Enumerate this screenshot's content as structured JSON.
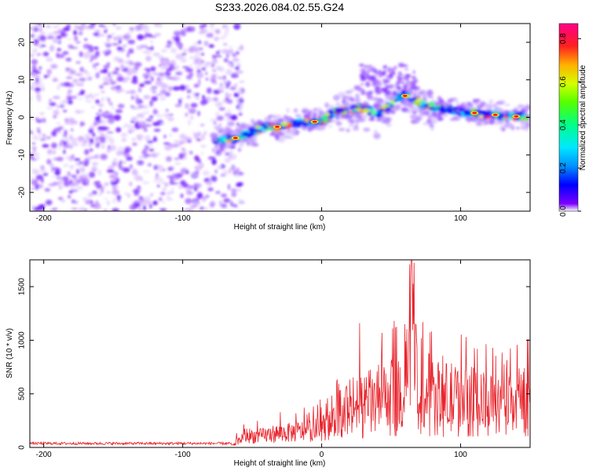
{
  "title": "S233.2026.084.02.55.G24",
  "chart_data": [
    {
      "type": "heatmap",
      "xlabel": "Height of straight line (km)",
      "ylabel": "Frequency (Hz)",
      "xlim": [
        -210,
        150
      ],
      "ylim": [
        -25,
        25
      ],
      "xticks": [
        -200,
        -100,
        0,
        100
      ],
      "yticks": [
        -20,
        -10,
        0,
        10,
        20
      ],
      "colorbar": {
        "label": "Normalized spectral amplitude",
        "range": [
          0,
          0.87
        ],
        "ticks": [
          "0.0",
          "0.2",
          "0.4",
          "0.6",
          "0.8"
        ],
        "tick_values": [
          0,
          0.2,
          0.4,
          0.6,
          0.8
        ]
      },
      "noise_region_x": [
        -210,
        -65
      ],
      "ridge": {
        "x": [
          -78,
          -62,
          -50,
          -40,
          -30,
          -15,
          0,
          10,
          20,
          30,
          40,
          50,
          58,
          65,
          75,
          90,
          100,
          115,
          130,
          150
        ],
        "freq": [
          -6.5,
          -5.5,
          -4.0,
          -2.5,
          -2.5,
          -1.5,
          -1.0,
          1.5,
          2.0,
          2.5,
          1.0,
          3.5,
          6.0,
          5.0,
          3.0,
          2.0,
          1.5,
          1.0,
          0.5,
          0.0
        ]
      }
    },
    {
      "type": "line",
      "xlabel": "Height of straight line (km)",
      "ylabel": "SNR (10 * v/v)",
      "xlim": [
        -210,
        150
      ],
      "ylim": [
        0,
        1750
      ],
      "xticks": [
        -200,
        -100,
        0,
        100
      ],
      "yticks": [
        0,
        500,
        1000,
        1500
      ],
      "series": [
        {
          "name": "SNR",
          "color": "#e8232b",
          "x": [
            -210,
            -65,
            -60,
            -55,
            -45,
            -35,
            -25,
            -15,
            -5,
            0,
            5,
            10,
            20,
            30,
            40,
            50,
            60,
            65,
            70,
            80,
            90,
            100,
            110,
            120,
            130,
            140,
            150
          ],
          "y": [
            40,
            30,
            130,
            250,
            230,
            280,
            300,
            330,
            360,
            400,
            450,
            500,
            520,
            560,
            620,
            650,
            680,
            1750,
            600,
            640,
            650,
            620,
            600,
            560,
            520,
            560,
            600
          ]
        }
      ]
    }
  ]
}
